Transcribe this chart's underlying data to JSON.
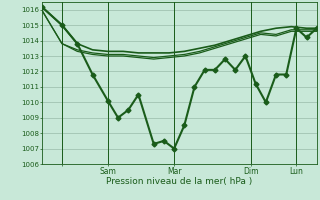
{
  "xlabel": "Pression niveau de la mer( hPa )",
  "bg_color": "#c8e8d8",
  "line_color": "#1a5c1a",
  "grid_color": "#99bbaa",
  "ylim": [
    1006,
    1016.5
  ],
  "yticks": [
    1006,
    1007,
    1008,
    1009,
    1010,
    1011,
    1012,
    1013,
    1014,
    1015,
    1016
  ],
  "xlim": [
    0,
    108
  ],
  "xtick_positions": [
    8,
    26,
    52,
    82,
    100
  ],
  "xtick_labels": [
    "",
    "Sam",
    "Mar",
    "Dim",
    "Lun"
  ],
  "vline_positions": [
    8,
    26,
    52,
    82,
    100
  ],
  "line_smooth1": {
    "x": [
      0,
      8,
      14,
      20,
      26,
      32,
      38,
      44,
      50,
      56,
      62,
      68,
      74,
      80,
      86,
      92,
      98,
      104,
      108
    ],
    "y": [
      1016.2,
      1015.0,
      1013.8,
      1013.4,
      1013.3,
      1013.3,
      1013.2,
      1013.2,
      1013.2,
      1013.3,
      1013.5,
      1013.7,
      1014.0,
      1014.3,
      1014.6,
      1014.8,
      1014.9,
      1014.8,
      1014.8
    ],
    "linewidth": 1.2
  },
  "line_smooth2": {
    "x": [
      0,
      8,
      14,
      20,
      26,
      32,
      38,
      44,
      50,
      56,
      62,
      68,
      74,
      80,
      86,
      92,
      98,
      104,
      108
    ],
    "y": [
      1016.0,
      1013.8,
      1013.4,
      1013.2,
      1013.1,
      1013.1,
      1013.0,
      1012.9,
      1013.0,
      1013.1,
      1013.3,
      1013.6,
      1013.9,
      1014.2,
      1014.5,
      1014.4,
      1014.7,
      1014.7,
      1014.7
    ],
    "linewidth": 0.9
  },
  "line_smooth3": {
    "x": [
      0,
      8,
      14,
      20,
      26,
      32,
      38,
      44,
      50,
      56,
      62,
      68,
      74,
      80,
      86,
      92,
      98,
      104,
      108
    ],
    "y": [
      1016.0,
      1013.8,
      1013.3,
      1013.1,
      1013.0,
      1013.0,
      1012.9,
      1012.8,
      1012.9,
      1013.0,
      1013.2,
      1013.5,
      1013.8,
      1014.1,
      1014.4,
      1014.3,
      1014.6,
      1014.6,
      1014.6
    ],
    "linewidth": 0.9
  },
  "line_main": {
    "x": [
      0,
      8,
      14,
      20,
      26,
      30,
      34,
      38,
      44,
      48,
      52,
      56,
      60,
      64,
      68,
      72,
      76,
      80,
      84,
      88,
      92,
      96,
      100,
      104,
      108
    ],
    "y": [
      1016.2,
      1015.0,
      1013.8,
      1011.8,
      1010.1,
      1009.0,
      1009.5,
      1010.5,
      1007.3,
      1007.5,
      1007.0,
      1008.5,
      1011.0,
      1012.1,
      1012.1,
      1012.8,
      1012.1,
      1013.0,
      1011.2,
      1010.0,
      1011.8,
      1011.8,
      1014.8,
      1014.2,
      1014.8
    ],
    "linewidth": 1.5,
    "markersize": 2.5
  }
}
